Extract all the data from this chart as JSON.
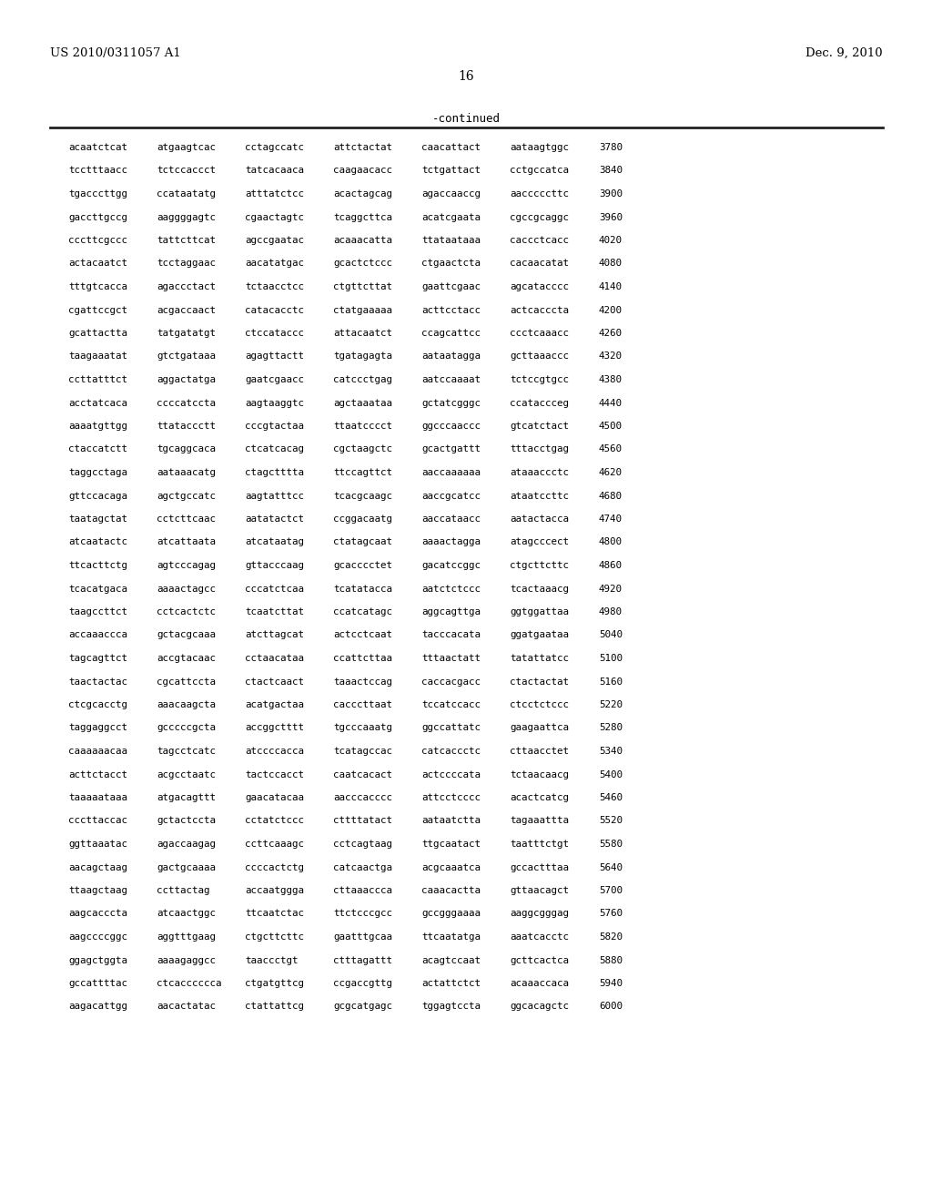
{
  "header_left": "US 2010/0311057 A1",
  "header_right": "Dec. 9, 2010",
  "page_number": "16",
  "continued_label": "-continued",
  "background_color": "#ffffff",
  "text_color": "#000000",
  "sequence_lines": [
    [
      "acaatctcat",
      "atgaagtcac",
      "cctagccatc",
      "attctactat",
      "caacattact",
      "aataagtggc",
      "3780"
    ],
    [
      "tcctttaacc",
      "tctccaccct",
      "tatcacaaca",
      "caagaacacc",
      "tctgattact",
      "cctgccatca",
      "3840"
    ],
    [
      "tgacccttgg",
      "ccataatatg",
      "atttatctcc",
      "acactagcag",
      "agaccaaccg",
      "aacccccttc",
      "3900"
    ],
    [
      "gaccttgccg",
      "aaggggagtc",
      "cgaactagtc",
      "tcaggcttca",
      "acatcgaata",
      "cgccgcaggc",
      "3960"
    ],
    [
      "cccttcgccc",
      "tattcttcat",
      "agccgaatac",
      "acaaacatta",
      "ttataataaa",
      "caccctcacc",
      "4020"
    ],
    [
      "actacaatct",
      "tcctaggaac",
      "aacatatgac",
      "gcactctccc",
      "ctgaactcta",
      "cacaacatat",
      "4080"
    ],
    [
      "tttgtcacca",
      "agaccctact",
      "tctaacctcc",
      "ctgttcttat",
      "gaattcgaac",
      "agcatacccc",
      "4140"
    ],
    [
      "cgattccgct",
      "acgaccaact",
      "catacacctc",
      "ctatgaaaaa",
      "acttcctacc",
      "actcacccta",
      "4200"
    ],
    [
      "gcattactta",
      "tatgatatgt",
      "ctccataccc",
      "attacaatct",
      "ccagcattcc",
      "ccctcaaacc",
      "4260"
    ],
    [
      "taagaaatat",
      "gtctgataaa",
      "agagttactt",
      "tgatagagta",
      "aataatagga",
      "gcttaaaccc",
      "4320"
    ],
    [
      "ccttatttct",
      "aggactatga",
      "gaatcgaacc",
      "catccctgag",
      "aatccaaaat",
      "tctccgtgcc",
      "4380"
    ],
    [
      "acctatcaca",
      "ccccatccta",
      "aagtaaggtc",
      "agctaaataa",
      "gctatcgggc",
      "ccataccceg",
      "4440"
    ],
    [
      "aaaatgttgg",
      "ttataccctt",
      "cccgtactaa",
      "ttaatcccct",
      "ggcccaaccc",
      "gtcatctact",
      "4500"
    ],
    [
      "ctaccatctt",
      "tgcaggcaca",
      "ctcatcacag",
      "cgctaagctc",
      "gcactgattt",
      "tttacctgag",
      "4560"
    ],
    [
      "taggcctaga",
      "aataaacatg",
      "ctagctttta",
      "ttccagttct",
      "aaccaaaaaa",
      "ataaaccctc",
      "4620"
    ],
    [
      "gttccacaga",
      "agctgccatc",
      "aagtatttcc",
      "tcacgcaagc",
      "aaccgcatcc",
      "ataatccttc",
      "4680"
    ],
    [
      "taatagctat",
      "cctcttcaac",
      "aatatactct",
      "ccggacaatg",
      "aaccataacc",
      "aatactacca",
      "4740"
    ],
    [
      "atcaatactc",
      "atcattaata",
      "atcataatag",
      "ctatagcaat",
      "aaaactagga",
      "atagcccect",
      "4800"
    ],
    [
      "ttcacttctg",
      "agtcccagag",
      "gttacccaag",
      "gcacccctet",
      "gacatccggc",
      "ctgcttcttc",
      "4860"
    ],
    [
      "tcacatgaca",
      "aaaactagcc",
      "cccatctcaa",
      "tcatatacca",
      "aatctctccc",
      "tcactaaacg",
      "4920"
    ],
    [
      "taagccttct",
      "cctcactctc",
      "tcaatcttat",
      "ccatcatagc",
      "aggcagttga",
      "ggtggattaa",
      "4980"
    ],
    [
      "accaaaccca",
      "gctacgcaaa",
      "atcttagcat",
      "actcctcaat",
      "tacccacata",
      "ggatgaataa",
      "5040"
    ],
    [
      "tagcagttct",
      "accgtacaac",
      "cctaacataa",
      "ccattcttaa",
      "tttaactatt",
      "tatattatcc",
      "5100"
    ],
    [
      "taactactac",
      "cgcattccta",
      "ctactcaact",
      "taaactccag",
      "caccacgacc",
      "ctactactat",
      "5160"
    ],
    [
      "ctcgcacctg",
      "aaacaagcta",
      "acatgactaa",
      "cacccttaat",
      "tccatccacc",
      "ctcctctccc",
      "5220"
    ],
    [
      "taggaggcct",
      "gcccccgcta",
      "accggctttt",
      "tgcccaaatg",
      "ggccattatc",
      "gaagaattca",
      "5280"
    ],
    [
      "caaaaaacaa",
      "tagcctcatc",
      "atccccacca",
      "tcatagccac",
      "catcaccctc",
      "cttaacctet",
      "5340"
    ],
    [
      "acttctacct",
      "acgcctaatc",
      "tactccacct",
      "caatcacact",
      "actccccata",
      "tctaacaacg",
      "5400"
    ],
    [
      "taaaaataaa",
      "atgacagttt",
      "gaacatacaa",
      "aacccacccc",
      "attcctcccc",
      "acactcatcg",
      "5460"
    ],
    [
      "cccttaccac",
      "gctactccta",
      "cctatctccc",
      "cttttatact",
      "aataatctta",
      "tagaaattta",
      "5520"
    ],
    [
      "ggttaaatac",
      "agaccaagag",
      "ccttcaaagc",
      "cctcagtaag",
      "ttgcaatact",
      "taatttctgt",
      "5580"
    ],
    [
      "aacagctaag",
      "gactgcaaaa",
      "ccccactctg",
      "catcaactga",
      "acgcaaatca",
      "gccactttaa",
      "5640"
    ],
    [
      "ttaagctaag",
      "ccttactag",
      "accaatggga",
      "cttaaaccca",
      "caaacactta",
      "gttaacagct",
      "5700"
    ],
    [
      "aagcacccta",
      "atcaactggc",
      "ttcaatctac",
      "ttctcccgcc",
      "gccgggaaaa",
      "aaggcgggag",
      "5760"
    ],
    [
      "aagccccggc",
      "aggtttgaag",
      "ctgcttcttc",
      "gaatttgcaa",
      "ttcaatatga",
      "aaatcacctc",
      "5820"
    ],
    [
      "ggagctggta",
      "aaaagaggcc",
      "taaccctgt",
      "ctttagattt",
      "acagtccaat",
      "gcttcactca",
      "5880"
    ],
    [
      "gccattttac",
      "ctcacccccca",
      "ctgatgttcg",
      "ccgaccgttg",
      "actattctct",
      "acaaaccaca",
      "5940"
    ],
    [
      "aagacattgg",
      "aacactatac",
      "ctattattcg",
      "gcgcatgagc",
      "tggagtccta",
      "ggcacagctc",
      "6000"
    ]
  ]
}
